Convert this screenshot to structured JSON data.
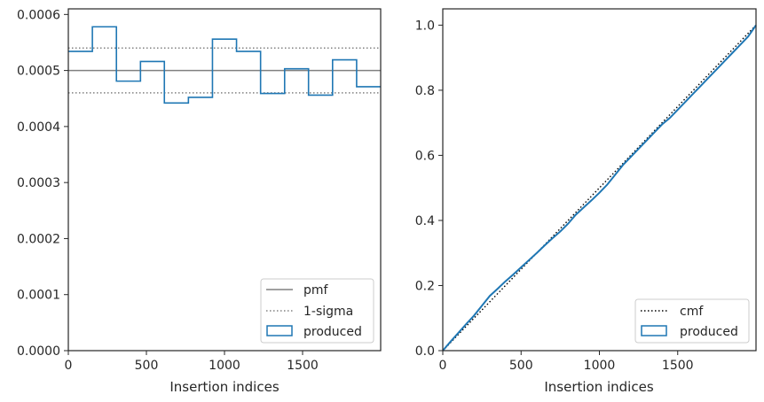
{
  "colors": {
    "produced": "#1f77b4",
    "pmf": "#808080",
    "sigma": "#808080",
    "cmf": "#000000",
    "axes": "#262626"
  },
  "chart_data": [
    {
      "type": "histogram-step",
      "xlabel": "Insertion indices",
      "ylabel": "",
      "xlim": [
        0,
        2000
      ],
      "ylim": [
        0,
        0.00061
      ],
      "xticks": [
        0,
        500,
        1000,
        1500
      ],
      "xtick_labels": [
        "0",
        "500",
        "1000",
        "1500"
      ],
      "yticks": [
        0,
        0.0001,
        0.0002,
        0.0003,
        0.0004,
        0.0005,
        0.0006
      ],
      "ytick_labels": [
        "0.0000",
        "0.0001",
        "0.0002",
        "0.0003",
        "0.0004",
        "0.0005",
        "0.0006"
      ],
      "bin_edges": [
        0,
        154,
        308,
        462,
        615,
        769,
        923,
        1077,
        1231,
        1385,
        1538,
        1692,
        1846,
        2000
      ],
      "series": [
        {
          "name": "produced",
          "style": "step",
          "values": [
            0.000534,
            0.000578,
            0.000481,
            0.000516,
            0.000442,
            0.000452,
            0.000556,
            0.000534,
            0.000459,
            0.000503,
            0.000456,
            0.000519,
            0.000471
          ]
        }
      ],
      "reference_lines": [
        {
          "name": "pmf",
          "y": 0.0005,
          "style": "solid"
        },
        {
          "name": "1-sigma",
          "y": 0.00054,
          "style": "dotted"
        },
        {
          "y": 0.00046,
          "style": "dotted"
        }
      ],
      "legend": {
        "position": "lower-right",
        "entries": [
          "pmf",
          "1-sigma",
          "produced"
        ]
      },
      "grid": false
    },
    {
      "type": "line",
      "xlabel": "Insertion indices",
      "ylabel": "",
      "xlim": [
        0,
        2000
      ],
      "ylim": [
        0,
        1.05
      ],
      "xticks": [
        0,
        500,
        1000,
        1500
      ],
      "xtick_labels": [
        "0",
        "500",
        "1000",
        "1500"
      ],
      "yticks": [
        0,
        0.2,
        0.4,
        0.6,
        0.8,
        1.0
      ],
      "ytick_labels": [
        "0.0",
        "0.2",
        "0.4",
        "0.6",
        "0.8",
        "1.0"
      ],
      "series": [
        {
          "name": "cmf",
          "style": "dotted",
          "x": [
            0,
            2000
          ],
          "y": [
            0,
            1.0
          ]
        },
        {
          "name": "produced",
          "style": "solid",
          "x": [
            0,
            50,
            100,
            150,
            200,
            250,
            300,
            350,
            400,
            450,
            500,
            550,
            600,
            650,
            700,
            750,
            800,
            850,
            900,
            950,
            1000,
            1050,
            1100,
            1150,
            1200,
            1250,
            1300,
            1350,
            1400,
            1450,
            1500,
            1550,
            1600,
            1650,
            1700,
            1750,
            1800,
            1850,
            1900,
            1950,
            2000
          ],
          "y": [
            0,
            0.028,
            0.055,
            0.082,
            0.108,
            0.138,
            0.168,
            0.19,
            0.213,
            0.234,
            0.256,
            0.278,
            0.3,
            0.323,
            0.345,
            0.366,
            0.39,
            0.418,
            0.44,
            0.462,
            0.485,
            0.51,
            0.54,
            0.57,
            0.595,
            0.62,
            0.645,
            0.67,
            0.695,
            0.715,
            0.74,
            0.765,
            0.79,
            0.815,
            0.84,
            0.865,
            0.89,
            0.915,
            0.94,
            0.965,
            1.0
          ]
        }
      ],
      "legend": {
        "position": "lower-right",
        "entries": [
          "cmf",
          "produced"
        ]
      },
      "grid": false
    }
  ]
}
